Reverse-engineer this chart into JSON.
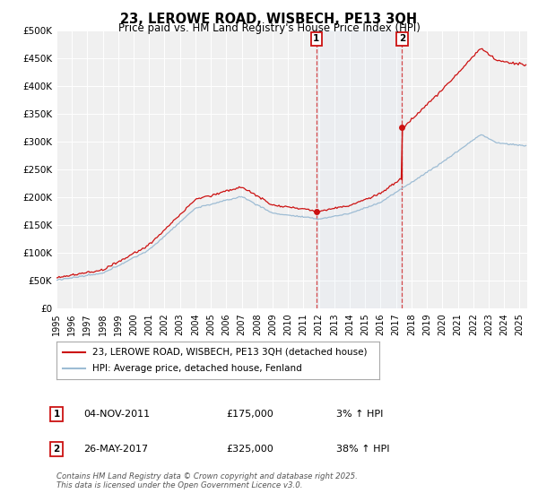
{
  "title": "23, LEROWE ROAD, WISBECH, PE13 3QH",
  "subtitle": "Price paid vs. HM Land Registry's House Price Index (HPI)",
  "ylim": [
    0,
    500000
  ],
  "yticks": [
    0,
    50000,
    100000,
    150000,
    200000,
    250000,
    300000,
    350000,
    400000,
    450000,
    500000
  ],
  "ytick_labels": [
    "£0",
    "£50K",
    "£100K",
    "£150K",
    "£200K",
    "£250K",
    "£300K",
    "£350K",
    "£400K",
    "£450K",
    "£500K"
  ],
  "xlim_start": 1995.0,
  "xlim_end": 2025.5,
  "background_color": "#ffffff",
  "plot_bg_color": "#f0f0f0",
  "grid_color": "#ffffff",
  "hpi_color": "#9dbcd4",
  "price_color": "#cc1111",
  "sale1_date": 2011.84,
  "sale1_price": 175000,
  "sale2_date": 2017.39,
  "sale2_price": 325000,
  "legend_label_price": "23, LEROWE ROAD, WISBECH, PE13 3QH (detached house)",
  "legend_label_hpi": "HPI: Average price, detached house, Fenland",
  "annotation1_date": "04-NOV-2011",
  "annotation1_price": "£175,000",
  "annotation1_pct": "3% ↑ HPI",
  "annotation2_date": "26-MAY-2017",
  "annotation2_price": "£325,000",
  "annotation2_pct": "38% ↑ HPI",
  "footer": "Contains HM Land Registry data © Crown copyright and database right 2025.\nThis data is licensed under the Open Government Licence v3.0."
}
